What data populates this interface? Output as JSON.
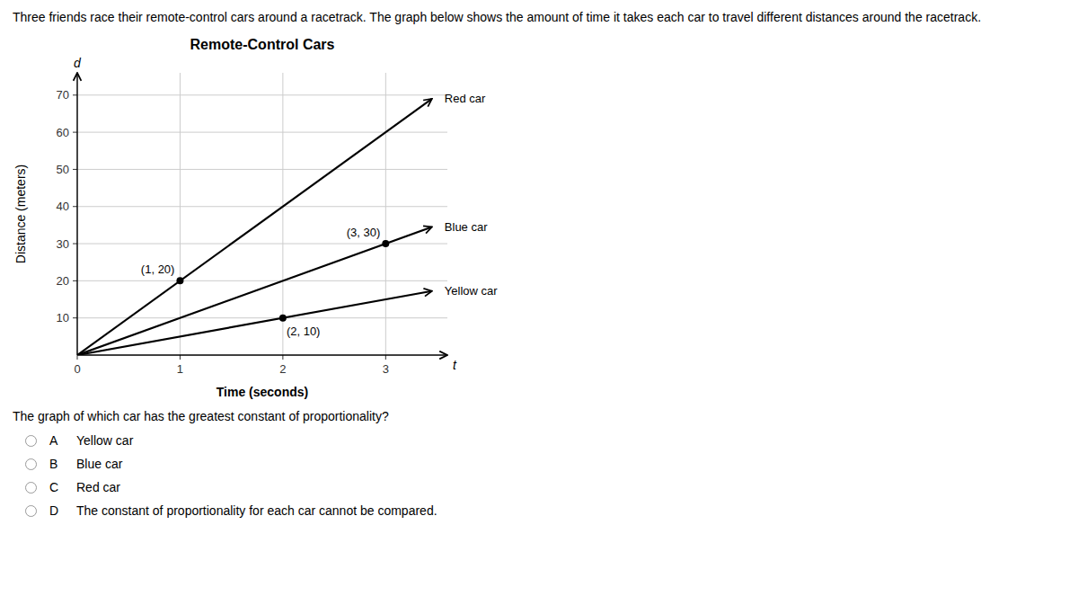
{
  "chart_data": {
    "type": "line",
    "title": "Remote-Control Cars",
    "header": "Three friends race their remote-control cars around a racetrack.  The graph below shows the amount of time it takes each car to travel different distances around the racetrack.",
    "question": "The graph of which car has the greatest constant of proportionality?",
    "options": [
      {
        "letter": "A",
        "text": "Yellow car"
      },
      {
        "letter": "B",
        "text": "Blue car"
      },
      {
        "letter": "C",
        "text": "Red car"
      },
      {
        "letter": "D",
        "text": "The constant of proportionality for each car cannot be compared."
      }
    ],
    "xlabel": "Time (seconds)",
    "ylabel": "Distance (meters)",
    "x_axis_symbol": "t",
    "y_axis_symbol": "d",
    "color": "#000000",
    "x": [
      0,
      3.45
    ],
    "series": [
      {
        "name": "Red car",
        "color": "#000000",
        "values": [
          0,
          69
        ]
      },
      {
        "name": "Blue car",
        "color": "#000000",
        "values": [
          0,
          34.5
        ]
      },
      {
        "name": "Yellow car",
        "color": "#000000",
        "values": [
          0,
          17.25
        ]
      }
    ],
    "points": [
      {
        "x": 1,
        "y": 20,
        "label": "(1, 20)"
      },
      {
        "x": 3,
        "y": 30,
        "label": "(3, 30)"
      },
      {
        "x": 2,
        "y": 10,
        "label": "(2, 10)"
      }
    ],
    "xlim": [
      0,
      3.6
    ],
    "ylim": [
      0,
      76
    ],
    "xticks": [
      0,
      1,
      2,
      3
    ],
    "yticks": [
      10,
      20,
      30,
      40,
      50,
      60,
      70
    ],
    "grid": true
  }
}
